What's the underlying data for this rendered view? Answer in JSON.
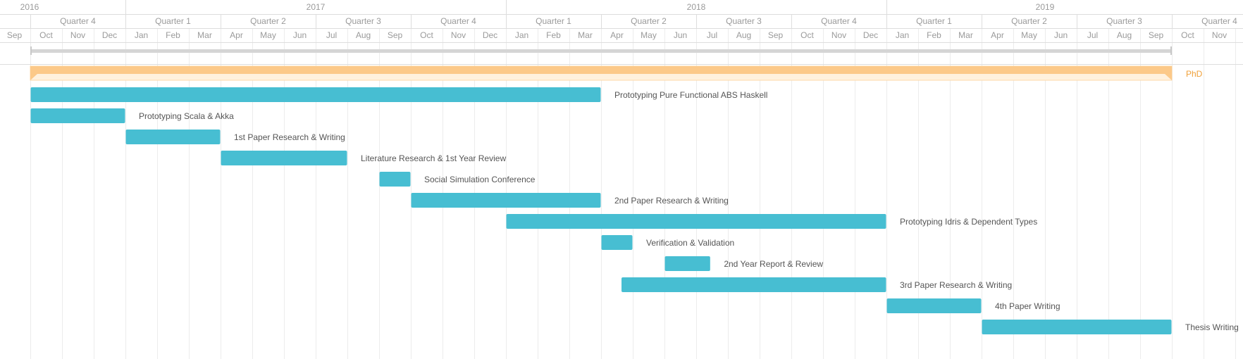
{
  "chart_data": {
    "type": "gantt",
    "timeline_start": "2016-09",
    "timeline_end": "2019-11",
    "header": {
      "years": [
        {
          "label": "2016",
          "start": "2016-09",
          "end": "2017-01"
        },
        {
          "label": "2017",
          "start": "2017-01",
          "end": "2018-01"
        },
        {
          "label": "2018",
          "start": "2018-01",
          "end": "2019-01"
        },
        {
          "label": "2019",
          "start": "2019-01",
          "end": "2019-11"
        }
      ],
      "quarters": [
        {
          "label": "Quarter 4",
          "start": "2016-10",
          "end": "2017-01"
        },
        {
          "label": "Quarter 1",
          "start": "2017-01",
          "end": "2017-04"
        },
        {
          "label": "Quarter 2",
          "start": "2017-04",
          "end": "2017-07"
        },
        {
          "label": "Quarter 3",
          "start": "2017-07",
          "end": "2017-10"
        },
        {
          "label": "Quarter 4",
          "start": "2017-10",
          "end": "2018-01"
        },
        {
          "label": "Quarter 1",
          "start": "2018-01",
          "end": "2018-04"
        },
        {
          "label": "Quarter 2",
          "start": "2018-04",
          "end": "2018-07"
        },
        {
          "label": "Quarter 3",
          "start": "2018-07",
          "end": "2018-10"
        },
        {
          "label": "Quarter 4",
          "start": "2018-10",
          "end": "2019-01"
        },
        {
          "label": "Quarter 1",
          "start": "2019-01",
          "end": "2019-04"
        },
        {
          "label": "Quarter 2",
          "start": "2019-04",
          "end": "2019-07"
        },
        {
          "label": "Quarter 3",
          "start": "2019-07",
          "end": "2019-10"
        },
        {
          "label": "Quarter 4",
          "start": "2019-10",
          "end": "2020-01"
        }
      ],
      "months": [
        "Sep",
        "Oct",
        "Nov",
        "Dec",
        "Jan",
        "Feb",
        "Mar",
        "Apr",
        "May",
        "Jun",
        "Jul",
        "Aug",
        "Sep",
        "Oct",
        "Nov",
        "Dec",
        "Jan",
        "Feb",
        "Mar",
        "Apr",
        "May",
        "Jun",
        "Jul",
        "Aug",
        "Sep",
        "Oct",
        "Nov",
        "Dec",
        "Jan",
        "Feb",
        "Mar",
        "Apr",
        "May",
        "Jun",
        "Jul",
        "Aug",
        "Sep",
        "Oct",
        "Nov"
      ]
    },
    "overall_span": {
      "start": "2016-10-01",
      "end": "2019-10-01"
    },
    "summary_task": {
      "name": "PhD",
      "start": "2016-10-01",
      "end": "2019-10-01",
      "color": "#fcc989"
    },
    "tasks": [
      {
        "name": "Prototyping Pure Functional ABS Haskell",
        "start": "2016-10-01",
        "end": "2018-04-01"
      },
      {
        "name": "Prototyping Scala & Akka",
        "start": "2016-10-01",
        "end": "2017-01-01"
      },
      {
        "name": "1st Paper Research & Writing",
        "start": "2017-01-01",
        "end": "2017-04-01"
      },
      {
        "name": "Literature Research & 1st Year Review",
        "start": "2017-04-01",
        "end": "2017-08-01"
      },
      {
        "name": "Social Simulation Conference",
        "start": "2017-09-01",
        "end": "2017-10-01"
      },
      {
        "name": "2nd Paper Research & Writing",
        "start": "2017-10-01",
        "end": "2018-04-01"
      },
      {
        "name": "Prototyping Idris & Dependent Types",
        "start": "2018-01-01",
        "end": "2019-01-01"
      },
      {
        "name": "Verification & Validation",
        "start": "2018-04-01",
        "end": "2018-05-01"
      },
      {
        "name": "2nd Year Report & Review",
        "start": "2018-06-01",
        "end": "2018-07-15"
      },
      {
        "name": "3rd Paper Research & Writing",
        "start": "2018-04-20",
        "end": "2019-01-01"
      },
      {
        "name": "4th Paper Writing",
        "start": "2019-01-01",
        "end": "2019-04-01"
      },
      {
        "name": "Thesis Writing",
        "start": "2019-04-01",
        "end": "2019-10-01"
      }
    ],
    "colors": {
      "task": "#47bed2",
      "summary": "#fcc989",
      "summary_label": "#f0a038",
      "span_bar": "#d5d5d5",
      "grid": "#ececec",
      "header_text": "#9a9a9a"
    },
    "grid": true
  }
}
